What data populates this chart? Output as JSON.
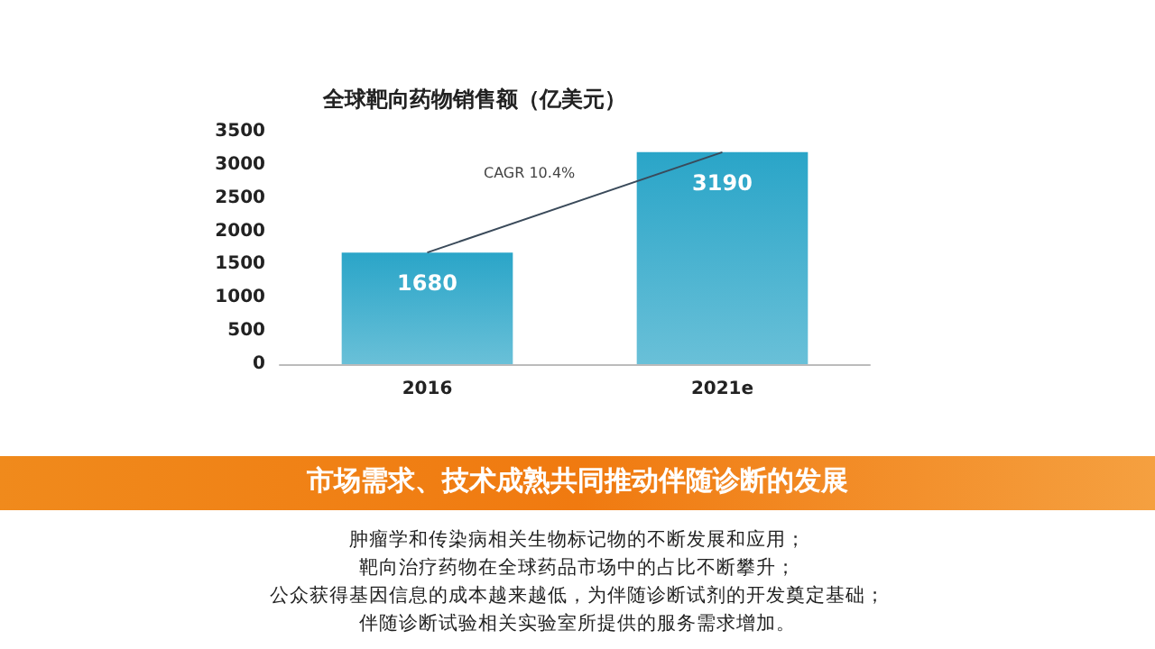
{
  "chart_data": {
    "type": "bar",
    "title": "全球靶向药物销售额（亿美元）",
    "categories": [
      "2016",
      "2021e"
    ],
    "series": [
      {
        "color": "#2aa5c8",
        "values": [
          1680,
          3190
        ],
        "value_labels": [
          "1680",
          "3190"
        ]
      },
      {
        "type": "line",
        "color": "#3a4a5a",
        "values": [
          1680,
          3190
        ],
        "marker": "none"
      }
    ],
    "ylim": [
      0,
      3500
    ],
    "yticks": [
      0,
      500,
      1000,
      1500,
      2000,
      2500,
      3000,
      3500
    ],
    "grid": false,
    "annotations": [
      "CAGR 10.4%",
      "市场需求、技术成熟共同推动伴随诊断的发展",
      "肿瘤学和传染病相关生物标记物的不断发展和应用；",
      "靶向治疗药物在全球药品市场中的占比不断攀升；",
      "公众获得基因信息的成本越来越低，为伴随诊断试剂的开发奠定基础；",
      "伴随诊断试验相关实验室所提供的服务需求增加。"
    ]
  }
}
